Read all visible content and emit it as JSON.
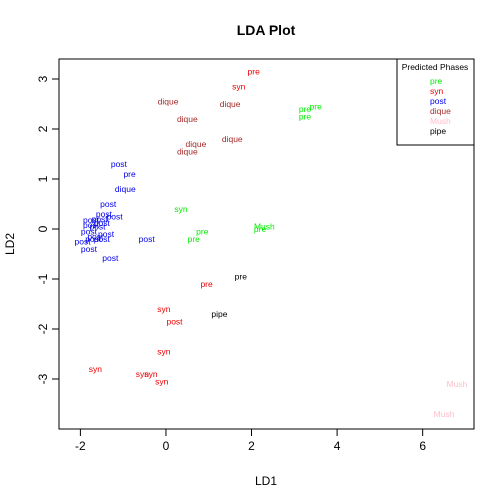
{
  "chart_data": {
    "type": "scatter",
    "title": "LDA Plot",
    "xlabel": "LD1",
    "ylabel": "LD2",
    "xlim": [
      -2.5,
      7.2
    ],
    "ylim": [
      -4.0,
      3.4
    ],
    "xticks": [
      -2,
      0,
      2,
      4,
      6
    ],
    "yticks": [
      -3,
      -2,
      -1,
      0,
      1,
      2,
      3
    ],
    "grid": false,
    "legend": {
      "title": "Predicted Phases",
      "placement": "top-right",
      "entries": [
        {
          "name": "pre",
          "color": "#00EE00"
        },
        {
          "name": "syn",
          "color": "#EE0000"
        },
        {
          "name": "post",
          "color": "#0000EE"
        },
        {
          "name": "dique",
          "color": "#A52A2A"
        },
        {
          "name": "Mush",
          "color": "#FFC0CB"
        },
        {
          "name": "pipe",
          "color": "#000000"
        }
      ]
    },
    "series": [
      {
        "name": "pre",
        "color": "#00EE00",
        "points": [
          {
            "x": 0.35,
            "y": 0.4,
            "label": "syn"
          },
          {
            "x": 0.85,
            "y": -0.05,
            "label": "pre"
          },
          {
            "x": 0.65,
            "y": -0.2,
            "label": "pre"
          },
          {
            "x": 2.3,
            "y": 0.05,
            "label": "Mush"
          },
          {
            "x": 2.2,
            "y": 0.0,
            "label": "pre"
          },
          {
            "x": 3.25,
            "y": 2.4,
            "label": "pre"
          },
          {
            "x": 3.5,
            "y": 2.45,
            "label": "pre"
          },
          {
            "x": 3.25,
            "y": 2.25,
            "label": "pre"
          }
        ]
      },
      {
        "name": "syn",
        "color": "#EE0000",
        "points": [
          {
            "x": 2.05,
            "y": 3.15,
            "label": "pre"
          },
          {
            "x": 1.7,
            "y": 2.85,
            "label": "syn"
          },
          {
            "x": 0.95,
            "y": -1.1,
            "label": "pre"
          },
          {
            "x": -0.05,
            "y": -1.6,
            "label": "syn"
          },
          {
            "x": 0.2,
            "y": -1.85,
            "label": "post"
          },
          {
            "x": -0.05,
            "y": -2.45,
            "label": "syn"
          },
          {
            "x": -1.65,
            "y": -2.8,
            "label": "syn"
          },
          {
            "x": -0.55,
            "y": -2.9,
            "label": "syn"
          },
          {
            "x": -0.35,
            "y": -2.9,
            "label": "syn"
          },
          {
            "x": -0.1,
            "y": -3.05,
            "label": "syn"
          }
        ]
      },
      {
        "name": "post",
        "color": "#0000EE",
        "points": [
          {
            "x": -1.1,
            "y": 1.3,
            "label": "post"
          },
          {
            "x": -0.85,
            "y": 1.1,
            "label": "pre"
          },
          {
            "x": -0.95,
            "y": 0.8,
            "label": "dique"
          },
          {
            "x": -1.35,
            "y": 0.5,
            "label": "post"
          },
          {
            "x": -1.45,
            "y": 0.3,
            "label": "post"
          },
          {
            "x": -1.2,
            "y": 0.25,
            "label": "post"
          },
          {
            "x": -1.55,
            "y": 0.2,
            "label": "post"
          },
          {
            "x": -1.75,
            "y": 0.18,
            "label": "post"
          },
          {
            "x": -1.5,
            "y": 0.12,
            "label": "post"
          },
          {
            "x": -1.75,
            "y": 0.08,
            "label": "post"
          },
          {
            "x": -1.6,
            "y": 0.05,
            "label": "post"
          },
          {
            "x": -1.8,
            "y": -0.05,
            "label": "post"
          },
          {
            "x": -1.4,
            "y": -0.1,
            "label": "post"
          },
          {
            "x": -1.65,
            "y": -0.15,
            "label": "post"
          },
          {
            "x": -1.7,
            "y": -0.2,
            "label": "post"
          },
          {
            "x": -1.5,
            "y": -0.2,
            "label": "post"
          },
          {
            "x": -1.95,
            "y": -0.25,
            "label": "post"
          },
          {
            "x": -1.8,
            "y": -0.4,
            "label": "post"
          },
          {
            "x": -1.3,
            "y": -0.58,
            "label": "post"
          },
          {
            "x": -0.45,
            "y": -0.2,
            "label": "post"
          }
        ]
      },
      {
        "name": "dique",
        "color": "#A52A2A",
        "points": [
          {
            "x": 0.05,
            "y": 2.55,
            "label": "dique"
          },
          {
            "x": 1.5,
            "y": 2.5,
            "label": "dique"
          },
          {
            "x": 0.5,
            "y": 2.2,
            "label": "dique"
          },
          {
            "x": 1.55,
            "y": 1.8,
            "label": "dique"
          },
          {
            "x": 0.7,
            "y": 1.7,
            "label": "dique"
          },
          {
            "x": 0.5,
            "y": 1.55,
            "label": "dique"
          }
        ]
      },
      {
        "name": "Mush",
        "color": "#FFC0CB",
        "points": [
          {
            "x": 6.8,
            "y": -3.1,
            "label": "Mush"
          },
          {
            "x": 6.5,
            "y": -3.7,
            "label": "Mush"
          }
        ]
      },
      {
        "name": "pipe",
        "color": "#000000",
        "points": [
          {
            "x": 1.75,
            "y": -0.95,
            "label": "pre"
          },
          {
            "x": 1.25,
            "y": -1.7,
            "label": "pipe"
          }
        ]
      }
    ]
  }
}
